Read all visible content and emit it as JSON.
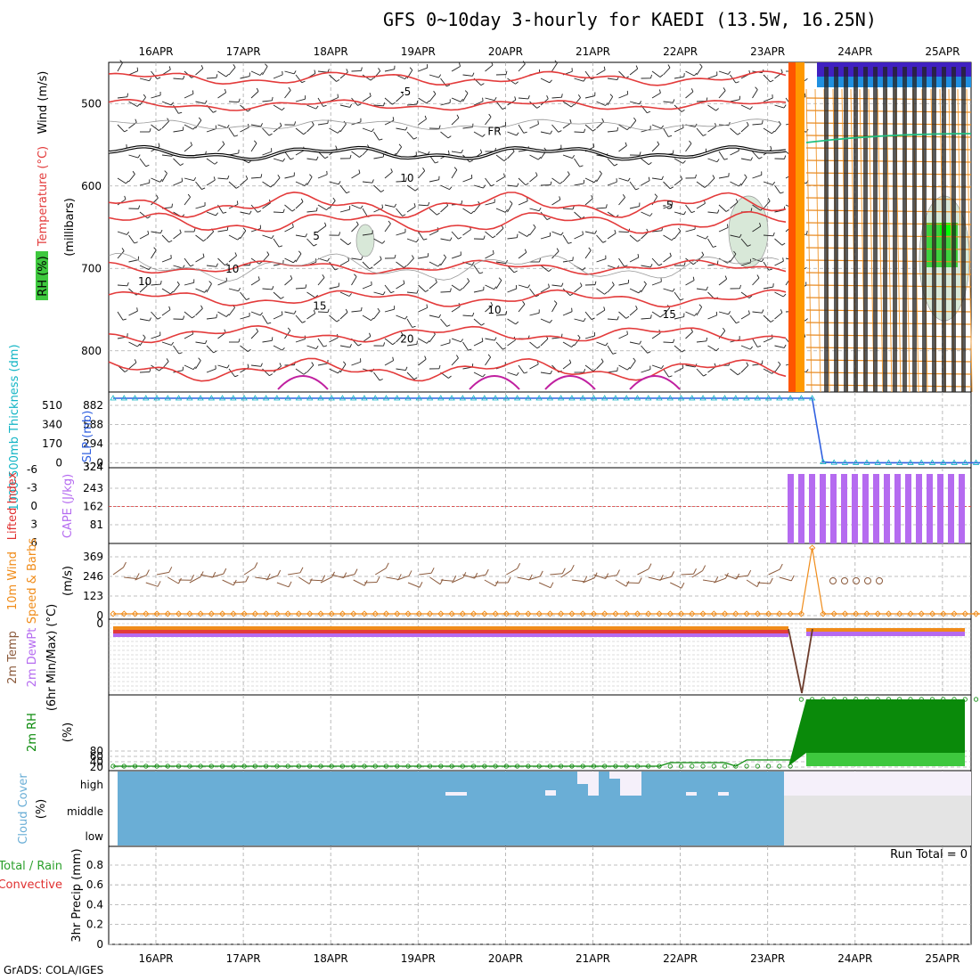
{
  "title": "GFS 0~10day 3-hourly for KAEDI (13.5W, 16.25N)",
  "credit": "GrADS: COLA/IGES",
  "run_total": "Run Total = 0",
  "date_labels": [
    "16APR",
    "17APR",
    "18APR",
    "19APR",
    "20APR",
    "21APR",
    "22APR",
    "23APR",
    "24APR",
    "25APR"
  ],
  "colors": {
    "temperature": "#e33b3b",
    "freezing": "#000000",
    "barbs": "#222222",
    "thickness": "#13b5c5",
    "slp": "#3060e0",
    "cape": "#b56bf0",
    "wind_speed": "#f08c1a",
    "wind_barbs": "#8b5a3c",
    "rh": "#0a8a0a",
    "cloud": "#6aaed6",
    "precip_total": "#2ca02c",
    "precip_convective": "#e03030"
  },
  "panel_labels": {
    "upper_rh": "RH (%)",
    "upper_temperature": "Temperature (°C)",
    "upper_wind": "Wind (m/s)",
    "upper_pressure": "(millibars)",
    "thickness": "1000-500mb Thickness (dm)",
    "slp": "SLP (mb)",
    "lifted_index": "Lifted Index",
    "cape": "CAPE (J/kg)",
    "wind10m_a": "10m Wind",
    "wind10m_b": "Speed & Barbs",
    "wind10m_unit": "(m/s)",
    "temp2m_a": "2m Temp",
    "temp2m_b": "2m DewPt",
    "temp2m_c": "(6hr Min/Max) (°C)",
    "rh2m": "2m RH",
    "rh2m_unit": "(%)",
    "cloud": "Cloud Cover",
    "cloud_unit": "(%)",
    "precip_a": "Total / Rain",
    "precip_b": "Convective",
    "precip_c": "3hr Precip (mm)"
  },
  "chart_data": [
    {
      "panel": "upper-air",
      "type": "heatmap",
      "y_ticks": [
        "500",
        "600",
        "700",
        "800"
      ],
      "y_range_mb": [
        450,
        850
      ],
      "contour_labels": [
        {
          "text": "-5",
          "date": "19APR",
          "mb": 490
        },
        {
          "text": "FR",
          "date": "20APR",
          "mb": 538
        },
        {
          "text": "-5",
          "date": "22APR",
          "mb": 628
        },
        {
          "text": "5",
          "date": "18APR",
          "mb": 665
        },
        {
          "text": "10",
          "date": "17APR",
          "mb": 705
        },
        {
          "text": "15",
          "date": "18APR",
          "mb": 750
        },
        {
          "text": "20",
          "date": "19APR",
          "mb": 790
        },
        {
          "text": "15",
          "date": "22APR",
          "mb": 760
        },
        {
          "text": "10",
          "date": "16APR",
          "mb": 720
        },
        {
          "text": "10",
          "date": "20APR",
          "mb": 755
        },
        {
          "text": "10",
          "date": "19APR",
          "mb": 595
        }
      ]
    },
    {
      "panel": "thickness-slp",
      "type": "line",
      "thickness_ticks": [
        "510",
        "340",
        "170",
        "0"
      ],
      "slp_ticks": [
        "882",
        "588",
        "294",
        "0"
      ],
      "grid_ticks": [
        "324"
      ],
      "series": [
        {
          "name": "SLP (mb)",
          "values": [
            1013,
            1013,
            1013,
            1013,
            1013,
            1013,
            1013,
            1013,
            1013,
            1013,
            1013,
            1013,
            1013,
            1013,
            1013,
            1013,
            1013,
            1013,
            1013,
            1013,
            1013,
            1013,
            1013,
            1013,
            1013,
            1013,
            1013,
            1013,
            1013,
            1013,
            1013,
            1013,
            1013,
            1013,
            1013,
            1013,
            1013,
            1013,
            1013,
            1013,
            1013,
            1013,
            1013,
            1013,
            1013,
            1013,
            1013,
            1013,
            1013,
            1013,
            1013,
            1013,
            1013,
            1013,
            1013,
            1013,
            1013,
            1013,
            1013,
            1013,
            1013,
            1013,
            1013,
            1013,
            1013,
            20,
            10,
            8,
            8,
            8,
            8,
            8,
            8,
            8,
            8,
            8,
            8,
            8,
            8,
            8,
            8
          ]
        }
      ]
    },
    {
      "panel": "lifted-cape",
      "type": "bar",
      "li_ticks": [
        "-6",
        "-3",
        "0",
        "3",
        "6"
      ],
      "cape_ticks": [
        "243",
        "162",
        "81"
      ],
      "grid_ticks": [
        "324"
      ],
      "bars_from_date": "23APR",
      "bar_count": 17
    },
    {
      "panel": "wind-10m",
      "type": "line",
      "y_ticks": [
        "369",
        "246",
        "123",
        "0"
      ]
    },
    {
      "panel": "temp-2m",
      "type": "line",
      "y_ticks": [
        "0"
      ]
    },
    {
      "panel": "rh-2m",
      "type": "area",
      "y_ticks": [
        "80",
        "60",
        "40",
        "20"
      ]
    },
    {
      "panel": "cloud",
      "type": "heatmap",
      "y_ticks": [
        "high",
        "middle",
        "low"
      ],
      "covered_until_date": "23APR"
    },
    {
      "panel": "precip",
      "type": "bar",
      "y_ticks": [
        "0.8",
        "0.6",
        "0.4",
        "0.2",
        "0"
      ],
      "ylim": [
        0,
        1
      ]
    }
  ]
}
